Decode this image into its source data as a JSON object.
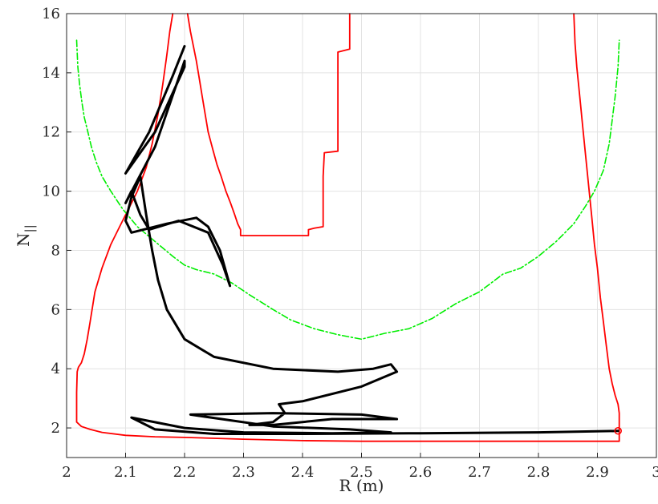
{
  "chart_data": {
    "type": "line",
    "title": "",
    "xlabel": "R (m)",
    "ylabel": "N",
    "ylabel_subscript": "||",
    "xlim": [
      2,
      3
    ],
    "ylim": [
      1,
      16
    ],
    "x_ticks": [
      2,
      2.1,
      2.2,
      2.3,
      2.4,
      2.5,
      2.6,
      2.7,
      2.8,
      2.9,
      3
    ],
    "x_tick_labels": [
      "2",
      "2.1",
      "2.2",
      "2.3",
      "2.4",
      "2.5",
      "2.6",
      "2.7",
      "2.8",
      "2.9",
      "3"
    ],
    "y_ticks": [
      2,
      4,
      6,
      8,
      10,
      12,
      14,
      16
    ],
    "y_tick_labels": [
      "2",
      "4",
      "6",
      "8",
      "10",
      "12",
      "14",
      "16"
    ],
    "grid": true,
    "legend": "none",
    "colors": {
      "red_boundary": "#ff0000",
      "green_dashdot": "#00ee00",
      "ray": "#000000",
      "grid": "#e3e3e3",
      "axes": "#262626"
    },
    "series": [
      {
        "style": "solid",
        "color": "#ff0000",
        "points": [
          [
            2.18,
            16.0
          ],
          [
            2.175,
            15.4
          ],
          [
            2.17,
            14.6
          ],
          [
            2.163,
            13.6
          ],
          [
            2.155,
            12.6
          ],
          [
            2.145,
            11.6
          ],
          [
            2.135,
            10.8
          ],
          [
            2.12,
            10.0
          ],
          [
            2.105,
            9.4
          ],
          [
            2.09,
            8.8
          ],
          [
            2.075,
            8.2
          ],
          [
            2.06,
            7.4
          ],
          [
            2.048,
            6.6
          ],
          [
            2.04,
            5.6
          ],
          [
            2.035,
            5.0
          ],
          [
            2.03,
            4.5
          ],
          [
            2.025,
            4.2
          ],
          [
            2.02,
            4.05
          ],
          [
            2.018,
            3.9
          ],
          [
            2.017,
            3.2
          ],
          [
            2.017,
            2.6
          ],
          [
            2.017,
            2.2
          ],
          [
            2.025,
            2.05
          ],
          [
            2.04,
            1.95
          ],
          [
            2.06,
            1.85
          ],
          [
            2.1,
            1.75
          ],
          [
            2.15,
            1.7
          ],
          [
            2.2,
            1.68
          ],
          [
            2.3,
            1.62
          ],
          [
            2.4,
            1.57
          ],
          [
            2.5,
            1.55
          ],
          [
            2.6,
            1.55
          ],
          [
            2.7,
            1.55
          ],
          [
            2.8,
            1.55
          ],
          [
            2.85,
            1.55
          ],
          [
            2.9,
            1.55
          ],
          [
            2.937,
            1.55
          ],
          [
            2.937,
            1.9
          ],
          [
            2.937,
            2.5
          ],
          [
            2.935,
            2.8
          ],
          [
            2.93,
            3.1
          ],
          [
            2.925,
            3.5
          ],
          [
            2.92,
            4.0
          ],
          [
            2.915,
            4.8
          ],
          [
            2.91,
            5.6
          ],
          [
            2.905,
            6.4
          ],
          [
            2.9,
            7.4
          ],
          [
            2.895,
            8.2
          ],
          [
            2.89,
            9.2
          ],
          [
            2.885,
            10.2
          ],
          [
            2.88,
            11.2
          ],
          [
            2.875,
            12.2
          ],
          [
            2.87,
            13.2
          ],
          [
            2.865,
            14.2
          ],
          [
            2.862,
            15.0
          ],
          [
            2.86,
            16.0
          ]
        ]
      },
      {
        "style": "solid",
        "color": "#ff0000",
        "points": [
          [
            2.205,
            16.0
          ],
          [
            2.21,
            15.4
          ],
          [
            2.215,
            14.9
          ],
          [
            2.22,
            14.4
          ],
          [
            2.225,
            13.8
          ],
          [
            2.23,
            13.2
          ],
          [
            2.235,
            12.6
          ],
          [
            2.24,
            12.0
          ],
          [
            2.248,
            11.4
          ],
          [
            2.255,
            10.9
          ],
          [
            2.262,
            10.5
          ],
          [
            2.27,
            10.0
          ],
          [
            2.278,
            9.6
          ],
          [
            2.285,
            9.2
          ],
          [
            2.29,
            8.9
          ],
          [
            2.295,
            8.7
          ],
          [
            2.295,
            8.5
          ],
          [
            2.35,
            8.5
          ],
          [
            2.41,
            8.5
          ],
          [
            2.41,
            8.7
          ],
          [
            2.42,
            8.75
          ],
          [
            2.435,
            8.8
          ],
          [
            2.435,
            10.5
          ],
          [
            2.437,
            11.3
          ],
          [
            2.46,
            11.35
          ],
          [
            2.46,
            14.7
          ],
          [
            2.48,
            14.8
          ],
          [
            2.48,
            16.0
          ]
        ]
      },
      {
        "style": "dashdot",
        "color": "#00ee00",
        "points": [
          [
            2.017,
            15.1
          ],
          [
            2.019,
            14.2
          ],
          [
            2.022,
            13.6
          ],
          [
            2.026,
            13.0
          ],
          [
            2.03,
            12.5
          ],
          [
            2.036,
            12.0
          ],
          [
            2.042,
            11.5
          ],
          [
            2.05,
            11.0
          ],
          [
            2.06,
            10.5
          ],
          [
            2.075,
            10.0
          ],
          [
            2.095,
            9.4
          ],
          [
            2.12,
            8.8
          ],
          [
            2.15,
            8.3
          ],
          [
            2.18,
            7.8
          ],
          [
            2.2,
            7.5
          ],
          [
            2.22,
            7.35
          ],
          [
            2.25,
            7.2
          ],
          [
            2.28,
            6.9
          ],
          [
            2.31,
            6.5
          ],
          [
            2.35,
            6.0
          ],
          [
            2.38,
            5.65
          ],
          [
            2.42,
            5.35
          ],
          [
            2.46,
            5.15
          ],
          [
            2.5,
            5.0
          ],
          [
            2.54,
            5.2
          ],
          [
            2.58,
            5.35
          ],
          [
            2.62,
            5.7
          ],
          [
            2.66,
            6.2
          ],
          [
            2.7,
            6.6
          ],
          [
            2.74,
            7.2
          ],
          [
            2.77,
            7.4
          ],
          [
            2.8,
            7.8
          ],
          [
            2.83,
            8.3
          ],
          [
            2.86,
            8.9
          ],
          [
            2.88,
            9.5
          ],
          [
            2.895,
            10.0
          ],
          [
            2.91,
            10.7
          ],
          [
            2.92,
            11.6
          ],
          [
            2.925,
            12.4
          ],
          [
            2.93,
            13.2
          ],
          [
            2.935,
            14.2
          ],
          [
            2.937,
            15.1
          ]
        ]
      },
      {
        "style": "solid",
        "color": "#000000",
        "points": [
          [
            2.935,
            1.9
          ],
          [
            2.8,
            1.85
          ],
          [
            2.6,
            1.82
          ],
          [
            2.4,
            1.8
          ],
          [
            2.25,
            1.8
          ],
          [
            2.15,
            1.95
          ],
          [
            2.11,
            2.35
          ],
          [
            2.2,
            2.0
          ],
          [
            2.3,
            1.85
          ],
          [
            2.45,
            1.82
          ],
          [
            2.55,
            1.85
          ],
          [
            2.48,
            1.95
          ],
          [
            2.35,
            2.05
          ],
          [
            2.21,
            2.45
          ],
          [
            2.35,
            2.5
          ],
          [
            2.5,
            2.45
          ],
          [
            2.56,
            2.3
          ],
          [
            2.45,
            2.3
          ],
          [
            2.35,
            2.1
          ],
          [
            2.31,
            2.1
          ],
          [
            2.35,
            2.2
          ],
          [
            2.37,
            2.5
          ],
          [
            2.36,
            2.8
          ],
          [
            2.4,
            2.9
          ],
          [
            2.5,
            3.4
          ],
          [
            2.56,
            3.9
          ],
          [
            2.55,
            4.15
          ],
          [
            2.52,
            4.0
          ],
          [
            2.46,
            3.9
          ],
          [
            2.35,
            4.0
          ],
          [
            2.25,
            4.4
          ],
          [
            2.2,
            5.0
          ],
          [
            2.17,
            6.0
          ],
          [
            2.155,
            7.0
          ],
          [
            2.145,
            8.0
          ],
          [
            2.135,
            9.2
          ],
          [
            2.125,
            10.5
          ],
          [
            2.11,
            9.8
          ],
          [
            2.1,
            9.0
          ],
          [
            2.11,
            8.6
          ],
          [
            2.17,
            8.9
          ],
          [
            2.22,
            9.1
          ],
          [
            2.24,
            8.8
          ],
          [
            2.26,
            8.0
          ],
          [
            2.277,
            6.8
          ],
          [
            2.265,
            7.5
          ],
          [
            2.24,
            8.6
          ],
          [
            2.19,
            9.0
          ],
          [
            2.14,
            8.7
          ],
          [
            2.125,
            9.2
          ],
          [
            2.11,
            10.0
          ],
          [
            2.1,
            9.6
          ],
          [
            2.15,
            11.5
          ],
          [
            2.2,
            14.4
          ],
          [
            2.2,
            14.2
          ],
          [
            2.15,
            12.0
          ],
          [
            2.1,
            10.6
          ],
          [
            2.14,
            12.0
          ],
          [
            2.18,
            13.9
          ],
          [
            2.2,
            14.9
          ]
        ]
      },
      {
        "style": "marker",
        "color": "#ff0000",
        "points": [
          [
            2.935,
            1.9
          ]
        ]
      }
    ]
  }
}
